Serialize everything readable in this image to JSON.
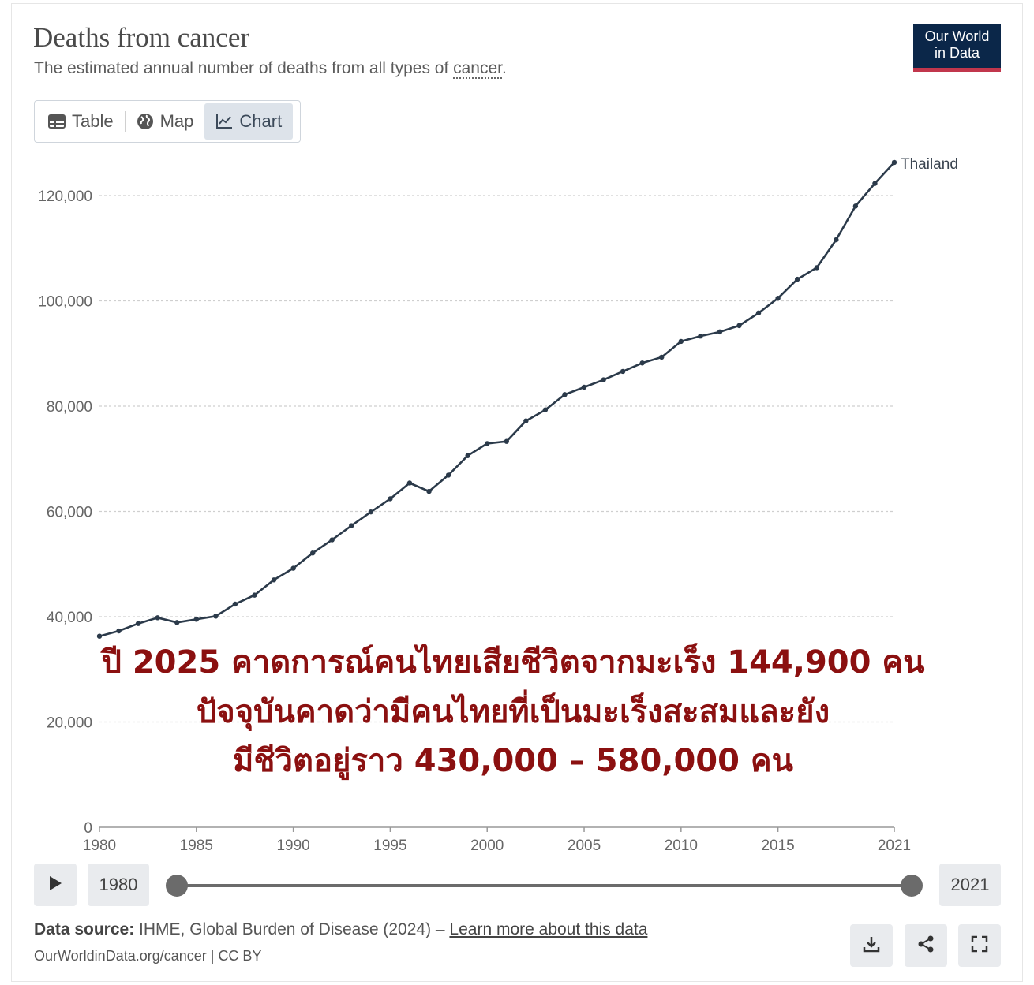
{
  "header": {
    "title": "Deaths from cancer",
    "subtitle_prefix": "The estimated annual number of deaths from all types of ",
    "subtitle_term": "cancer",
    "subtitle_suffix": "."
  },
  "logo": {
    "line1": "Our World",
    "line2": "in Data"
  },
  "tabs": [
    {
      "label": "Table",
      "icon": "table-icon"
    },
    {
      "label": "Map",
      "icon": "globe-icon"
    },
    {
      "label": "Chart",
      "icon": "line-chart-icon",
      "active": true
    }
  ],
  "chart_data": {
    "type": "line",
    "title": "Deaths from cancer",
    "xlabel": "",
    "ylabel": "",
    "xlim": [
      1980,
      2021
    ],
    "ylim": [
      0,
      130000
    ],
    "x_ticks": [
      1980,
      1985,
      1990,
      1995,
      2000,
      2005,
      2010,
      2015,
      2021
    ],
    "x_tick_labels": [
      "1980",
      "1985",
      "1990",
      "1995",
      "2000",
      "2005",
      "2010",
      "2015",
      "2021"
    ],
    "y_ticks": [
      0,
      20000,
      40000,
      60000,
      80000,
      100000,
      120000
    ],
    "y_tick_labels": [
      "0",
      "20,000",
      "40,000",
      "60,000",
      "80,000",
      "100,000",
      "120,000"
    ],
    "grid": "horizontal dotted",
    "series": [
      {
        "name": "Thailand",
        "color": "#2b3a4a",
        "x": [
          1980,
          1981,
          1982,
          1983,
          1984,
          1985,
          1986,
          1987,
          1988,
          1989,
          1990,
          1991,
          1992,
          1993,
          1994,
          1995,
          1996,
          1997,
          1998,
          1999,
          2000,
          2001,
          2002,
          2003,
          2004,
          2005,
          2006,
          2007,
          2008,
          2009,
          2010,
          2011,
          2012,
          2013,
          2014,
          2015,
          2016,
          2017,
          2018,
          2019,
          2020,
          2021
        ],
        "values": [
          36300,
          37300,
          38700,
          39800,
          38900,
          39500,
          40100,
          42400,
          44100,
          47000,
          49200,
          52100,
          54600,
          57300,
          59900,
          62400,
          65400,
          63800,
          66900,
          70600,
          72900,
          73300,
          77200,
          79300,
          82200,
          83600,
          85000,
          86600,
          88200,
          89300,
          92300,
          93300,
          94100,
          95300,
          97700,
          100500,
          104100,
          106300,
          111600,
          118000,
          122300,
          126300
        ]
      }
    ]
  },
  "annotation": {
    "line1": "ปี 2025 คาดการณ์คนไทยเสียชีวิตจากมะเร็ง 144,900 คน",
    "line2": "ปัจจุบันคาดว่ามีคนไทยที่เป็นมะเร็งสะสมและยัง",
    "line3": "มีชีวิตอยู่ราว 430,000 – 580,000 คน"
  },
  "timeline": {
    "start_year": "1980",
    "end_year": "2021"
  },
  "footer": {
    "source_label": "Data source:",
    "source_text": " IHME, Global Burden of Disease (2024) – ",
    "source_link": "Learn more about this data",
    "url_text": "OurWorldinData.org/cancer | CC BY"
  },
  "colors": {
    "line": "#2b3a4a",
    "overlay_text": "#8b1010",
    "logo_bg": "#0b2749",
    "logo_accent": "#c1364c"
  }
}
